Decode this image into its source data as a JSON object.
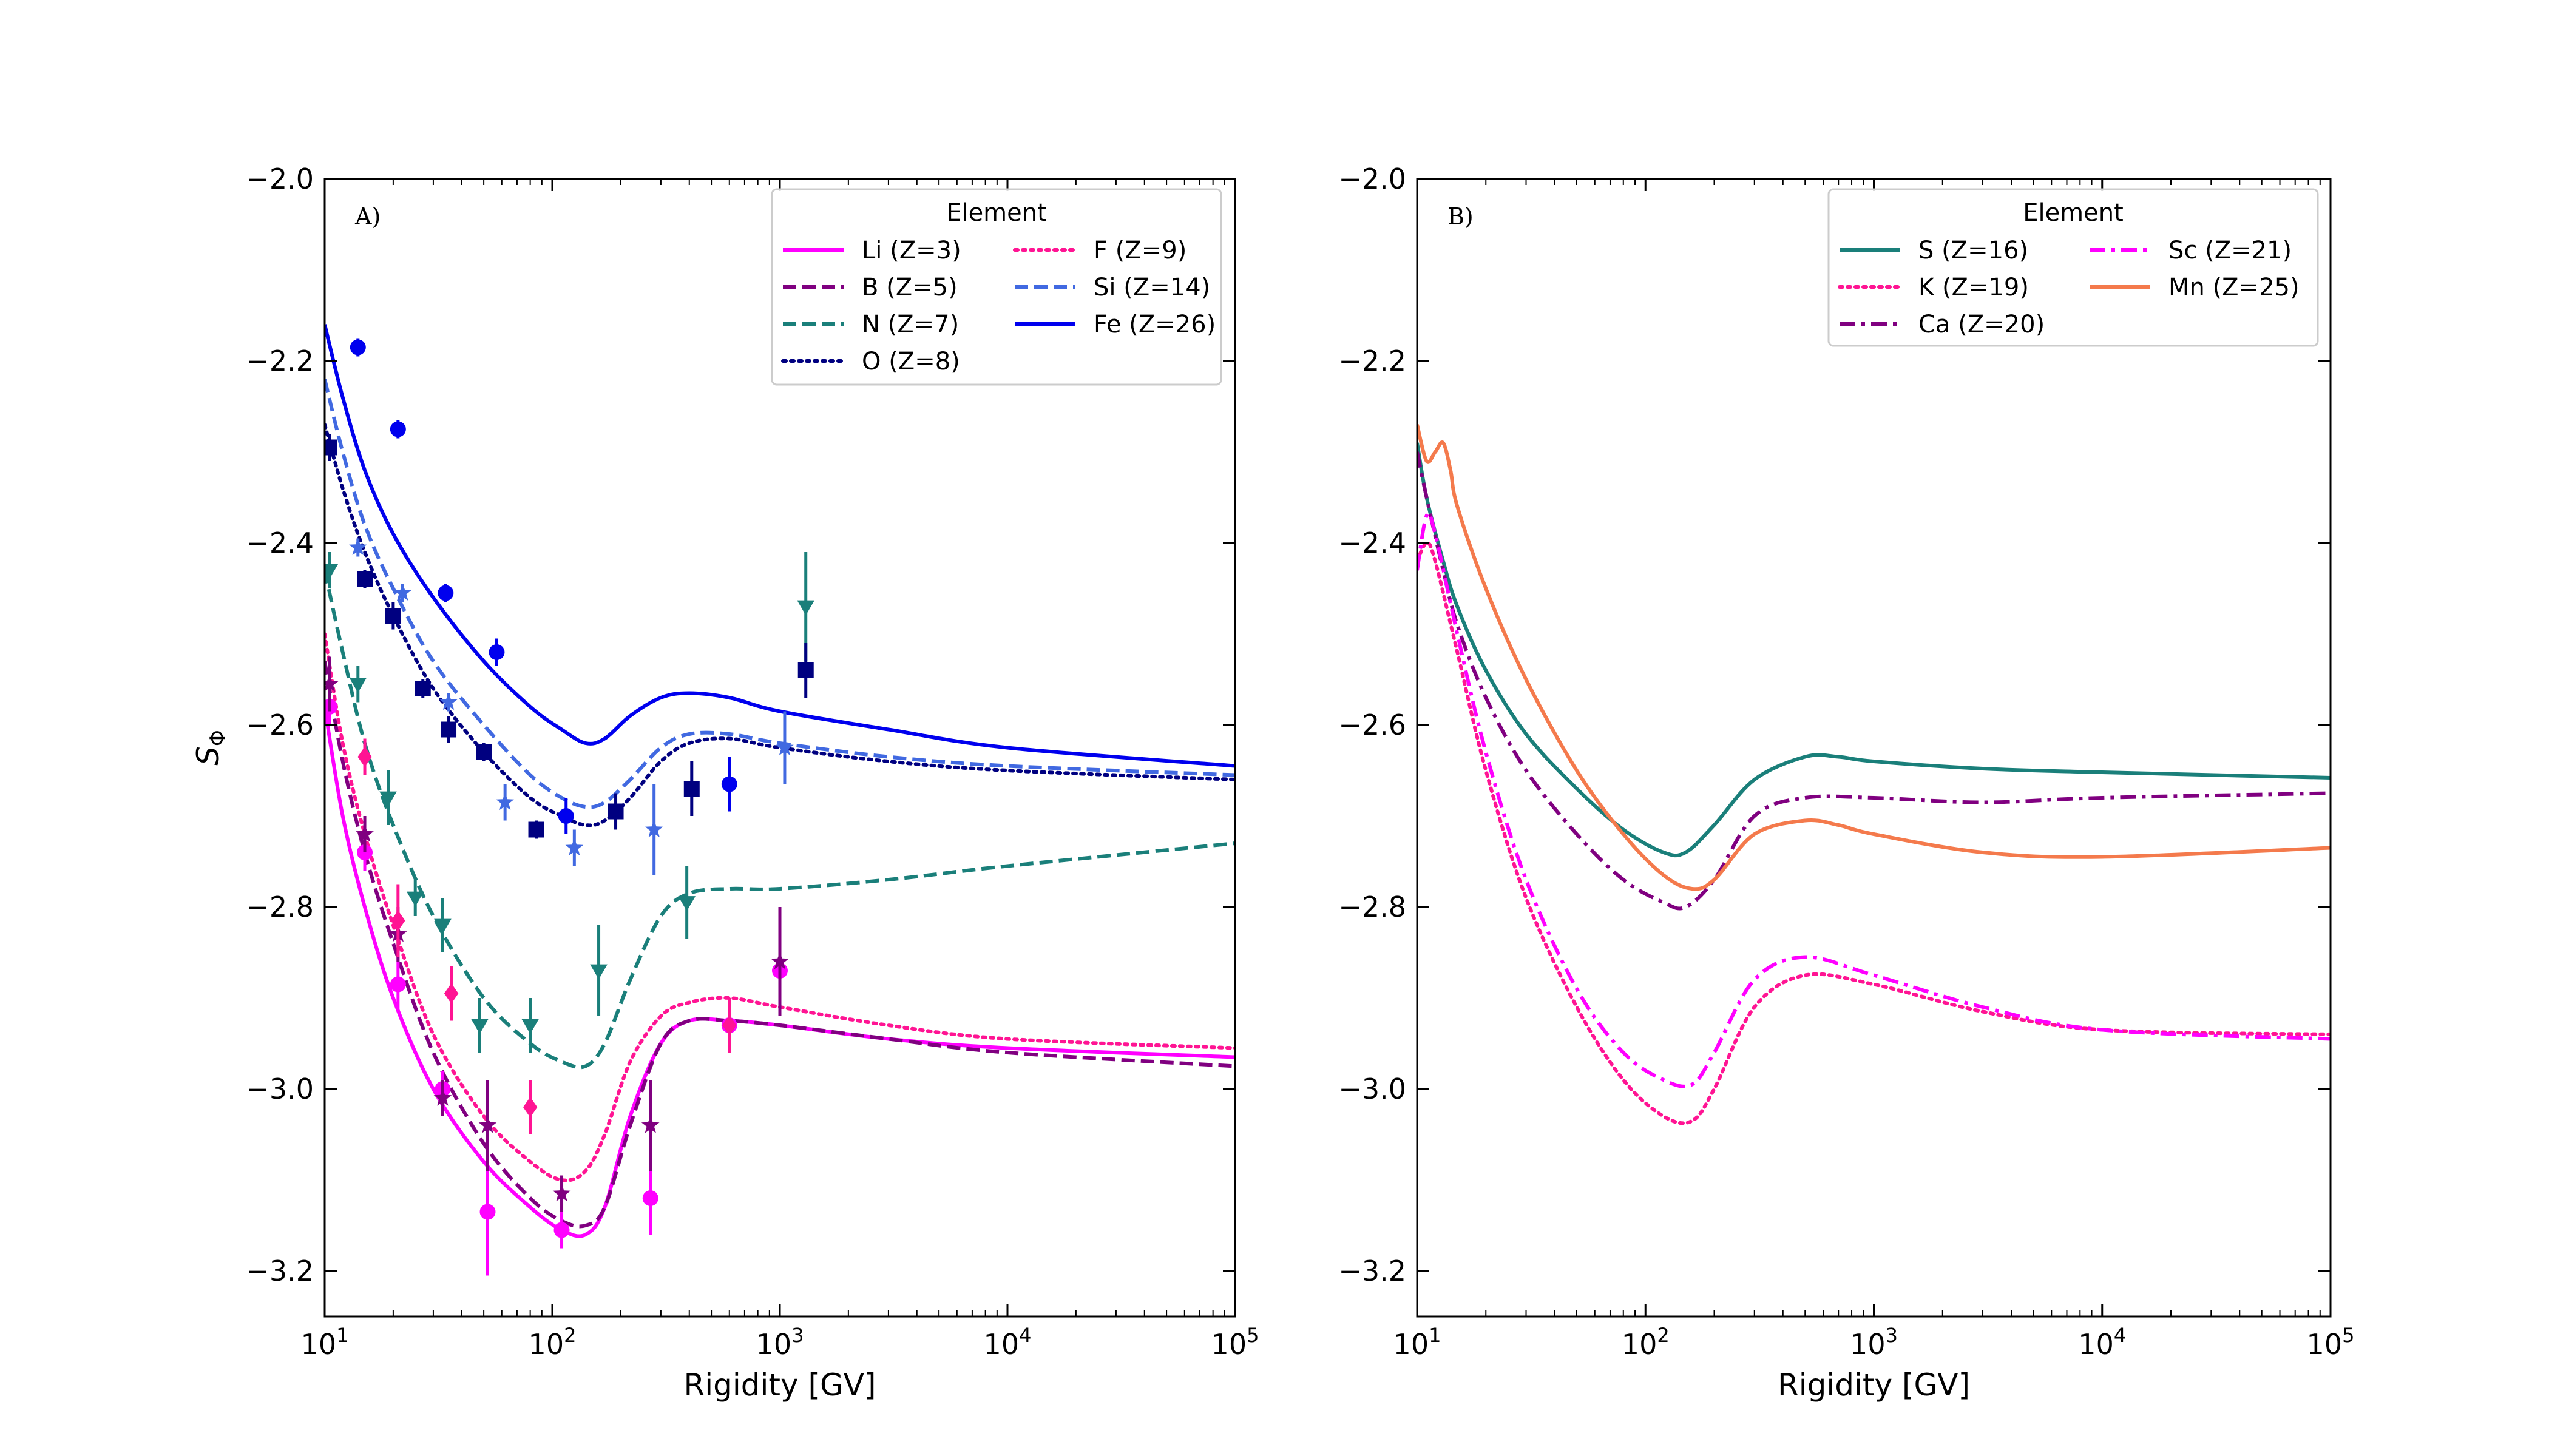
{
  "chart_data": [
    {
      "type": "line",
      "panel_label": "A)",
      "xlabel": "Rigidity [GV]",
      "ylabel": "S",
      "ylabel_sub": "Φ",
      "xscale": "log",
      "xlim": [
        10,
        100000
      ],
      "ylim": [
        -3.25,
        -2.0
      ],
      "x_ticks": [
        {
          "value": 10,
          "base": "10",
          "exp": "1"
        },
        {
          "value": 100,
          "base": "10",
          "exp": "2"
        },
        {
          "value": 1000,
          "base": "10",
          "exp": "3"
        },
        {
          "value": 10000,
          "base": "10",
          "exp": "4"
        },
        {
          "value": 100000,
          "base": "10",
          "exp": "5"
        }
      ],
      "y_ticks": [
        {
          "value": -3.2,
          "label": "−3.2"
        },
        {
          "value": -3.0,
          "label": "−3.0"
        },
        {
          "value": -2.8,
          "label": "−2.8"
        },
        {
          "value": -2.6,
          "label": "−2.6"
        },
        {
          "value": -2.4,
          "label": "−2.4"
        },
        {
          "value": -2.2,
          "label": "−2.2"
        },
        {
          "value": -2.0,
          "label": "−2.0"
        }
      ],
      "legend": {
        "title": "Element",
        "position": "upper-right",
        "columns": 2
      },
      "series": [
        {
          "name": "Li (Z=3)",
          "color": "#ff00ff",
          "dash": "solid",
          "legend_col": 0,
          "legend_row": 0,
          "x": [
            10,
            12,
            15,
            20,
            30,
            50,
            80,
            110,
            140,
            170,
            220,
            300,
            400,
            600,
            1000,
            3000,
            10000,
            100000
          ],
          "y": [
            -2.58,
            -2.7,
            -2.8,
            -2.9,
            -3.0,
            -3.08,
            -3.13,
            -3.155,
            -3.16,
            -3.13,
            -3.03,
            -2.95,
            -2.925,
            -2.925,
            -2.93,
            -2.945,
            -2.955,
            -2.965
          ]
        },
        {
          "name": "B (Z=5)",
          "color": "#800080",
          "dash": "dashed",
          "legend_col": 0,
          "legend_row": 1,
          "x": [
            10,
            12,
            15,
            20,
            30,
            50,
            80,
            110,
            140,
            170,
            220,
            300,
            400,
            600,
            1000,
            3000,
            10000,
            100000
          ],
          "y": [
            -2.53,
            -2.64,
            -2.74,
            -2.84,
            -2.96,
            -3.06,
            -3.12,
            -3.145,
            -3.15,
            -3.13,
            -3.04,
            -2.95,
            -2.925,
            -2.925,
            -2.93,
            -2.945,
            -2.96,
            -2.975
          ]
        },
        {
          "name": "N (Z=7)",
          "color": "#1a7f7a",
          "dash": "dashed",
          "legend_col": 0,
          "legend_row": 2,
          "x": [
            10,
            12,
            15,
            20,
            30,
            50,
            80,
            110,
            140,
            170,
            220,
            300,
            400,
            600,
            1000,
            3000,
            10000,
            100000
          ],
          "y": [
            -2.43,
            -2.52,
            -2.62,
            -2.71,
            -2.81,
            -2.9,
            -2.95,
            -2.97,
            -2.975,
            -2.95,
            -2.88,
            -2.81,
            -2.785,
            -2.78,
            -2.78,
            -2.77,
            -2.755,
            -2.73
          ]
        },
        {
          "name": "O (Z=8)",
          "color": "#000080",
          "dash": "dotted",
          "legend_col": 0,
          "legend_row": 3,
          "x": [
            10,
            12,
            15,
            20,
            30,
            50,
            80,
            110,
            140,
            170,
            220,
            300,
            400,
            600,
            1000,
            3000,
            10000,
            100000
          ],
          "y": [
            -2.27,
            -2.34,
            -2.41,
            -2.48,
            -2.56,
            -2.63,
            -2.68,
            -2.7,
            -2.71,
            -2.705,
            -2.68,
            -2.64,
            -2.62,
            -2.615,
            -2.625,
            -2.64,
            -2.65,
            -2.66
          ]
        },
        {
          "name": "F (Z=9)",
          "color": "#ff1493",
          "dash": "dotted",
          "legend_col": 1,
          "legend_row": 0,
          "x": [
            10,
            12,
            15,
            20,
            30,
            50,
            80,
            110,
            140,
            170,
            220,
            300,
            400,
            600,
            1000,
            3000,
            10000,
            100000
          ],
          "y": [
            -2.5,
            -2.62,
            -2.72,
            -2.82,
            -2.94,
            -3.03,
            -3.08,
            -3.1,
            -3.09,
            -3.05,
            -2.97,
            -2.92,
            -2.905,
            -2.9,
            -2.91,
            -2.93,
            -2.945,
            -2.955
          ]
        },
        {
          "name": "Si (Z=14)",
          "color": "#4169e1",
          "dash": "dashed",
          "legend_col": 1,
          "legend_row": 1,
          "x": [
            10,
            12,
            15,
            20,
            30,
            50,
            80,
            110,
            140,
            170,
            220,
            300,
            400,
            600,
            1000,
            3000,
            10000,
            100000
          ],
          "y": [
            -2.22,
            -2.3,
            -2.38,
            -2.45,
            -2.53,
            -2.6,
            -2.655,
            -2.68,
            -2.69,
            -2.685,
            -2.66,
            -2.625,
            -2.61,
            -2.61,
            -2.62,
            -2.635,
            -2.645,
            -2.655
          ]
        },
        {
          "name": "Fe (Z=26)",
          "color": "#0000ee",
          "dash": "solid",
          "legend_col": 1,
          "legend_row": 2,
          "x": [
            10,
            12,
            15,
            20,
            30,
            50,
            80,
            110,
            140,
            170,
            220,
            300,
            400,
            600,
            1000,
            3000,
            10000,
            100000
          ],
          "y": [
            -2.16,
            -2.24,
            -2.32,
            -2.39,
            -2.46,
            -2.53,
            -2.58,
            -2.605,
            -2.62,
            -2.615,
            -2.59,
            -2.57,
            -2.565,
            -2.57,
            -2.585,
            -2.605,
            -2.625,
            -2.645
          ]
        }
      ],
      "scatter": [
        {
          "name": "Li data",
          "color": "#ff00ff",
          "marker": "circle",
          "x": [
            10.5,
            15,
            21,
            33,
            52,
            110,
            270,
            600,
            1000
          ],
          "y": [
            -2.58,
            -2.74,
            -2.885,
            -3.0,
            -3.135,
            -3.155,
            -3.12,
            -2.93,
            -2.87
          ],
          "err": [
            0.02,
            0.02,
            0.03,
            0.02,
            0.07,
            0.02,
            0.04,
            0.03,
            0.04
          ]
        },
        {
          "name": "B data",
          "color": "#800080",
          "marker": "star",
          "x": [
            10.5,
            15,
            21,
            33,
            52,
            110,
            270,
            1000
          ],
          "y": [
            -2.555,
            -2.72,
            -2.83,
            -3.01,
            -3.04,
            -3.115,
            -3.04,
            -2.86
          ],
          "err": [
            0.03,
            0.02,
            0.03,
            0.02,
            0.05,
            0.02,
            0.05,
            0.06
          ]
        },
        {
          "name": "N data",
          "color": "#1a7f7a",
          "marker": "triangle-down",
          "x": [
            10.5,
            14,
            19,
            25,
            33,
            48,
            80,
            160,
            390,
            1300
          ],
          "y": [
            -2.43,
            -2.555,
            -2.68,
            -2.79,
            -2.82,
            -2.93,
            -2.93,
            -2.87,
            -2.795,
            -2.47
          ],
          "err": [
            0.02,
            0.02,
            0.03,
            0.02,
            0.03,
            0.03,
            0.03,
            0.05,
            0.04,
            0.06
          ]
        },
        {
          "name": "O data",
          "color": "#000080",
          "marker": "square",
          "x": [
            10.5,
            15,
            20,
            27,
            35,
            50,
            85,
            190,
            410,
            1300
          ],
          "y": [
            -2.295,
            -2.44,
            -2.48,
            -2.56,
            -2.605,
            -2.63,
            -2.715,
            -2.695,
            -2.67,
            -2.54
          ],
          "err": [
            0.015,
            0.01,
            0.015,
            0.01,
            0.015,
            0.01,
            0.01,
            0.02,
            0.03,
            0.03
          ]
        },
        {
          "name": "F data",
          "color": "#ff1493",
          "marker": "diamond",
          "x": [
            15,
            21,
            36,
            80,
            600
          ],
          "y": [
            -2.635,
            -2.815,
            -2.895,
            -3.02,
            -2.93
          ],
          "err": [
            0.02,
            0.04,
            0.03,
            0.03,
            0.03
          ]
        },
        {
          "name": "Si data",
          "color": "#4169e1",
          "marker": "star",
          "x": [
            14,
            22,
            35,
            62,
            125,
            280,
            1050
          ],
          "y": [
            -2.405,
            -2.455,
            -2.575,
            -2.685,
            -2.735,
            -2.715,
            -2.625
          ],
          "err": [
            0.01,
            0.01,
            0.01,
            0.02,
            0.02,
            0.05,
            0.04
          ]
        },
        {
          "name": "Fe data",
          "color": "#0000ee",
          "marker": "circle",
          "x": [
            14,
            21,
            34,
            57,
            115,
            600
          ],
          "y": [
            -2.185,
            -2.275,
            -2.455,
            -2.52,
            -2.7,
            -2.665
          ],
          "err": [
            0.01,
            0.01,
            0.01,
            0.015,
            0.02,
            0.03
          ]
        }
      ]
    },
    {
      "type": "line",
      "panel_label": "B)",
      "xlabel": "Rigidity [GV]",
      "xscale": "log",
      "xlim": [
        10,
        100000
      ],
      "ylim": [
        -3.25,
        -2.0
      ],
      "x_ticks": [
        {
          "value": 10,
          "base": "10",
          "exp": "1"
        },
        {
          "value": 100,
          "base": "10",
          "exp": "2"
        },
        {
          "value": 1000,
          "base": "10",
          "exp": "3"
        },
        {
          "value": 10000,
          "base": "10",
          "exp": "4"
        },
        {
          "value": 100000,
          "base": "10",
          "exp": "5"
        }
      ],
      "y_ticks": [
        {
          "value": -3.2,
          "label": "−3.2"
        },
        {
          "value": -3.0,
          "label": "−3.0"
        },
        {
          "value": -2.8,
          "label": "−2.8"
        },
        {
          "value": -2.6,
          "label": "−2.6"
        },
        {
          "value": -2.4,
          "label": "−2.4"
        },
        {
          "value": -2.2,
          "label": "−2.2"
        },
        {
          "value": -2.0,
          "label": "−2.0"
        }
      ],
      "legend": {
        "title": "Element",
        "position": "upper-right",
        "columns": 2
      },
      "series": [
        {
          "name": "S (Z=16)",
          "color": "#1a7f7a",
          "dash": "solid",
          "legend_col": 0,
          "legend_row": 0,
          "x": [
            10,
            11,
            13,
            15,
            20,
            30,
            50,
            80,
            120,
            150,
            200,
            300,
            500,
            700,
            1000,
            3000,
            10000,
            100000
          ],
          "y": [
            -2.29,
            -2.35,
            -2.42,
            -2.47,
            -2.54,
            -2.61,
            -2.67,
            -2.715,
            -2.74,
            -2.74,
            -2.71,
            -2.66,
            -2.635,
            -2.635,
            -2.64,
            -2.648,
            -2.652,
            -2.658
          ]
        },
        {
          "name": "K (Z=19)",
          "color": "#ff1493",
          "dash": "dotted",
          "legend_col": 0,
          "legend_row": 1,
          "x": [
            10,
            11,
            12,
            15,
            20,
            30,
            50,
            80,
            120,
            160,
            200,
            300,
            500,
            1000,
            3000,
            10000,
            100000
          ],
          "y": [
            -2.42,
            -2.4,
            -2.42,
            -2.52,
            -2.65,
            -2.79,
            -2.91,
            -2.99,
            -3.03,
            -3.035,
            -3.0,
            -2.91,
            -2.875,
            -2.885,
            -2.915,
            -2.935,
            -2.94
          ]
        },
        {
          "name": "Ca (Z=20)",
          "color": "#800080",
          "dash": "dashdot",
          "legend_col": 0,
          "legend_row": 2,
          "x": [
            10,
            11,
            13,
            15,
            20,
            30,
            50,
            80,
            120,
            150,
            200,
            300,
            500,
            1000,
            3000,
            10000,
            100000
          ],
          "y": [
            -2.3,
            -2.35,
            -2.43,
            -2.49,
            -2.57,
            -2.65,
            -2.72,
            -2.77,
            -2.795,
            -2.8,
            -2.77,
            -2.7,
            -2.68,
            -2.68,
            -2.685,
            -2.68,
            -2.675
          ]
        },
        {
          "name": "Sc (Z=21)",
          "color": "#ff00ff",
          "dash": "dashdot",
          "legend_col": 1,
          "legend_row": 0,
          "x": [
            10,
            11,
            12,
            15,
            20,
            30,
            50,
            80,
            120,
            160,
            200,
            300,
            500,
            1000,
            3000,
            10000,
            100000
          ],
          "y": [
            -2.43,
            -2.37,
            -2.39,
            -2.5,
            -2.63,
            -2.77,
            -2.89,
            -2.96,
            -2.99,
            -2.995,
            -2.96,
            -2.88,
            -2.855,
            -2.875,
            -2.91,
            -2.935,
            -2.945
          ]
        },
        {
          "name": "Mn (Z=25)",
          "color": "#f47a4c",
          "dash": "solid",
          "legend_col": 1,
          "legend_row": 1,
          "x": [
            10,
            11,
            12,
            13,
            14,
            15,
            20,
            30,
            50,
            80,
            120,
            160,
            200,
            300,
            500,
            700,
            1000,
            3000,
            10000,
            100000
          ],
          "y": [
            -2.27,
            -2.31,
            -2.3,
            -2.29,
            -2.32,
            -2.36,
            -2.45,
            -2.55,
            -2.65,
            -2.72,
            -2.765,
            -2.78,
            -2.77,
            -2.72,
            -2.705,
            -2.71,
            -2.72,
            -2.74,
            -2.745,
            -2.735
          ]
        }
      ]
    }
  ]
}
